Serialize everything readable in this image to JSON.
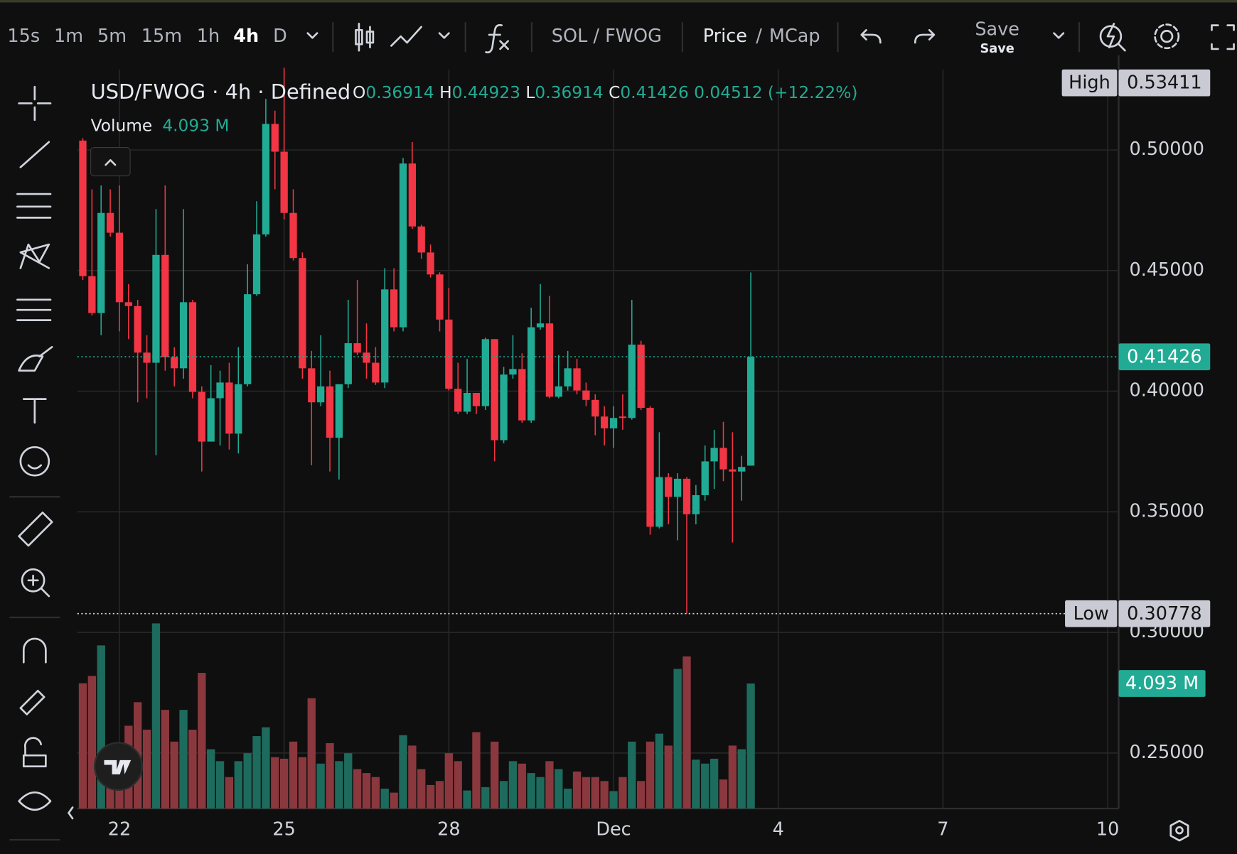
{
  "toolbar": {
    "intervals": [
      {
        "label": "15s"
      },
      {
        "label": "1m"
      },
      {
        "label": "5m"
      },
      {
        "label": "15m"
      },
      {
        "label": "1h"
      },
      {
        "label": "4h",
        "active": true
      },
      {
        "label": "D"
      }
    ],
    "pair": "SOL / FWOG",
    "price_toggle": "Price",
    "separator": "/",
    "mcap_toggle": "MCap",
    "save": "Save",
    "save_sub": "Save"
  },
  "legend": {
    "symbol": "USD/FWOG · 4h · Defined",
    "o": "O",
    "h": "H",
    "l": "L",
    "c": "C",
    "change": "0.04512",
    "change_pct": "(+12.22%)",
    "volume_name": "Volume",
    "volume_value": "4.093 M"
  },
  "price_badges": {
    "high": "High",
    "low": "Low"
  },
  "chart_data": {
    "type": "candlestick",
    "open": [
      0.5039,
      0.4477,
      0.4324,
      0.4739,
      0.4657,
      0.4369,
      0.4353,
      0.416,
      0.4118,
      0.4565,
      0.4141,
      0.4095,
      0.4369,
      0.3997,
      0.3791,
      0.3971,
      0.4036,
      0.3824,
      0.4029,
      0.4402,
      0.465,
      0.5108,
      0.4993,
      0.4739,
      0.4552,
      0.4095,
      0.3954,
      0.402,
      0.3807,
      0.4029,
      0.4199,
      0.416,
      0.4118,
      0.4036,
      0.4422,
      0.4265,
      0.4944,
      0.4683,
      0.4575,
      0.4484,
      0.4297,
      0.401,
      0.3915,
      0.3993,
      0.3938,
      0.4216,
      0.3797,
      0.4069,
      0.4092,
      0.3879,
      0.4265,
      0.4281,
      0.3977,
      0.402,
      0.4095,
      0.4003,
      0.3964,
      0.3895,
      0.3846,
      0.3895,
      0.3889,
      0.4193,
      0.3931,
      0.3438,
      0.3644,
      0.3562,
      0.3637,
      0.349,
      0.3569,
      0.3709,
      0.3765,
      0.3676,
      0.3667,
      0.36914
    ],
    "high": [
      0.5049,
      0.4837,
      0.4853,
      0.4837,
      0.4853,
      0.4444,
      0.4379,
      0.4232,
      0.4755,
      0.4853,
      0.4183,
      0.4755,
      0.4379,
      0.402,
      0.4108,
      0.4085,
      0.4118,
      0.4183,
      0.4526,
      0.4788,
      0.5212,
      0.5163,
      0.53411,
      0.4837,
      0.4575,
      0.4167,
      0.4232,
      0.4085,
      0.4029,
      0.4379,
      0.4461,
      0.4281,
      0.4183,
      0.451,
      0.451,
      0.4967,
      0.5033,
      0.469,
      0.4608,
      0.4493,
      0.4428,
      0.4118,
      0.4134,
      0.3993,
      0.4222,
      0.4216,
      0.4101,
      0.4232,
      0.4157,
      0.4346,
      0.4444,
      0.4395,
      0.415,
      0.4167,
      0.4134,
      0.4036,
      0.3987,
      0.3938,
      0.3938,
      0.3987,
      0.4379,
      0.4209,
      0.3938,
      0.383,
      0.366,
      0.366,
      0.3644,
      0.3611,
      0.3775,
      0.384,
      0.3873,
      0.383,
      0.3732,
      0.44923
    ],
    "low": [
      0.4461,
      0.4314,
      0.4232,
      0.4641,
      0.4248,
      0.4216,
      0.3954,
      0.3971,
      0.3735,
      0.4085,
      0.402,
      0.4052,
      0.3971,
      0.3667,
      0.3791,
      0.3775,
      0.3758,
      0.3742,
      0.402,
      0.4395,
      0.4641,
      0.4837,
      0.4712,
      0.4542,
      0.4052,
      0.3693,
      0.3938,
      0.3667,
      0.3634,
      0.4013,
      0.415,
      0.4052,
      0.4026,
      0.4013,
      0.4248,
      0.4248,
      0.4673,
      0.4549,
      0.4471,
      0.4248,
      0.4003,
      0.3905,
      0.3905,
      0.3905,
      0.3922,
      0.3709,
      0.3784,
      0.4052,
      0.3869,
      0.3869,
      0.4255,
      0.3971,
      0.3971,
      0.4003,
      0.3987,
      0.3938,
      0.3817,
      0.3775,
      0.3765,
      0.384,
      0.3882,
      0.3922,
      0.3405,
      0.3431,
      0.3448,
      0.3382,
      0.30778,
      0.3448,
      0.3546,
      0.3595,
      0.3627,
      0.3373,
      0.3546,
      0.36914
    ],
    "close": [
      0.4477,
      0.4324,
      0.4739,
      0.4657,
      0.4369,
      0.4353,
      0.416,
      0.4118,
      0.4565,
      0.4141,
      0.4095,
      0.4369,
      0.3997,
      0.3791,
      0.3971,
      0.4036,
      0.3824,
      0.4029,
      0.4402,
      0.465,
      0.5108,
      0.4993,
      0.4739,
      0.4552,
      0.4095,
      0.3954,
      0.402,
      0.3807,
      0.4029,
      0.4199,
      0.416,
      0.4118,
      0.4036,
      0.4422,
      0.4265,
      0.4944,
      0.4683,
      0.4575,
      0.4484,
      0.4297,
      0.401,
      0.3915,
      0.3993,
      0.3938,
      0.4216,
      0.3797,
      0.4069,
      0.4092,
      0.3879,
      0.4265,
      0.4281,
      0.3977,
      0.402,
      0.4095,
      0.4003,
      0.3964,
      0.3895,
      0.3846,
      0.3889,
      0.3889,
      0.4193,
      0.3931,
      0.3438,
      0.3644,
      0.3562,
      0.3637,
      0.349,
      0.3569,
      0.3709,
      0.3765,
      0.3676,
      0.3667,
      0.3686,
      0.41426
    ],
    "volume": {
      "axis": "y2",
      "values": [
        4.1,
        4.34,
        5.34,
        2.06,
        1.29,
        2.71,
        3.48,
        2.58,
        6.06,
        3.23,
        2.19,
        3.23,
        2.58,
        4.44,
        1.94,
        1.55,
        1.03,
        1.55,
        1.81,
        2.37,
        2.66,
        1.68,
        1.63,
        2.19,
        1.68,
        3.61,
        1.47,
        2.14,
        1.55,
        1.81,
        1.29,
        1.16,
        1.03,
        0.65,
        0.52,
        2.4,
        2.06,
        1.29,
        0.77,
        0.9,
        1.81,
        1.55,
        0.59,
        2.5,
        0.7,
        2.19,
        0.9,
        1.55,
        1.47,
        1.16,
        1.03,
        1.55,
        1.29,
        0.65,
        1.21,
        1.03,
        1.03,
        0.9,
        0.57,
        1.03,
        2.19,
        0.9,
        2.19,
        2.45,
        2.06,
        4.57,
        4.98,
        1.6,
        1.47,
        1.63,
        0.95,
        2.06,
        1.94,
        4.093
      ]
    },
    "up_color": "#22ab94",
    "down_color": "#f23645",
    "volume_up_color": "#1d6b5d",
    "volume_down_color": "#8a383e",
    "ylim": [
      0.227,
      0.536
    ],
    "yticks": [
      {
        "value": 0.25,
        "label": "0.25000"
      },
      {
        "value": 0.3,
        "label": "0.30000"
      },
      {
        "value": 0.35,
        "label": "0.35000"
      },
      {
        "value": 0.4,
        "label": "0.40000"
      },
      {
        "value": 0.45,
        "label": "0.45000"
      },
      {
        "value": 0.5,
        "label": "0.50000"
      }
    ],
    "y2lim": [
      0,
      24.4
    ],
    "xlim": [
      -0.6,
      113.2
    ],
    "xticks": [
      {
        "value": 4,
        "label": "22"
      },
      {
        "value": 22,
        "label": "25"
      },
      {
        "value": 40,
        "label": "28"
      },
      {
        "value": 58,
        "label": "Dec"
      },
      {
        "value": 76,
        "label": "4"
      },
      {
        "value": 94,
        "label": "7"
      },
      {
        "value": 112,
        "label": "10"
      }
    ],
    "grid": true
  }
}
